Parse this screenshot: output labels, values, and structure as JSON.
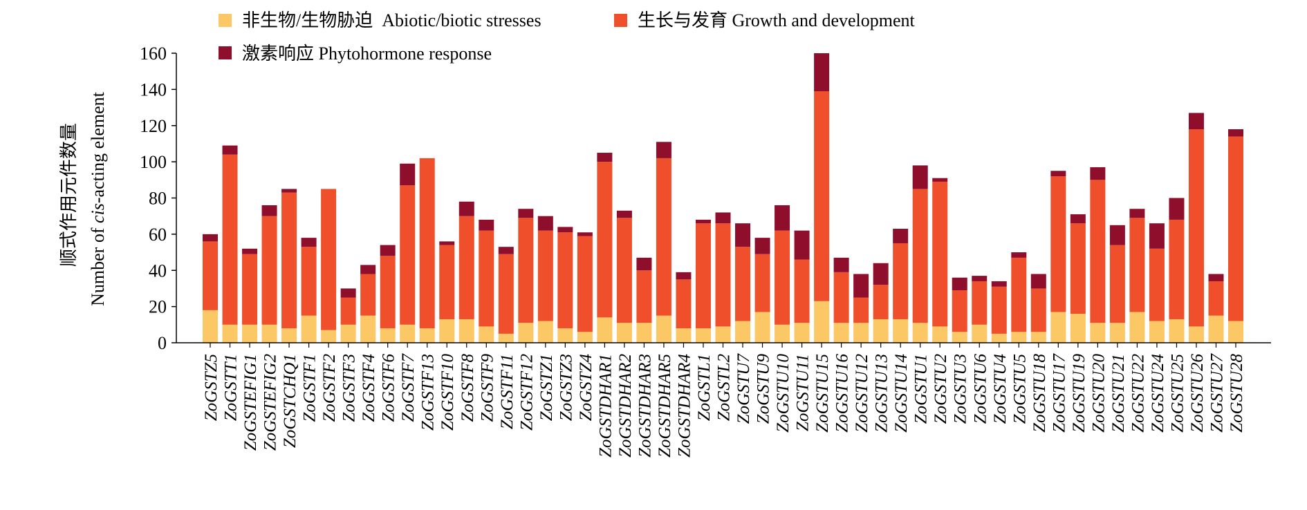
{
  "chart_data": {
    "type": "bar",
    "stacked": true,
    "title": "",
    "ylabel_cn": "顺式作用元件数量",
    "ylabel_en_prefix": "Number of ",
    "ylabel_en_italic": "cis",
    "ylabel_en_suffix": "-acting element",
    "xlabel": "",
    "ylim": [
      0,
      160
    ],
    "yticks": [
      0,
      20,
      40,
      60,
      80,
      100,
      120,
      140,
      160
    ],
    "grid": false,
    "legend_position": "top",
    "categories": [
      "ZoGSTZ5",
      "ZoGSTT1",
      "ZoGSTEFIG1",
      "ZoGSTEFIG2",
      "ZoGSTCHQ1",
      "ZoGSTF1",
      "ZoGSTF2",
      "ZoGSTF3",
      "ZoGSTF4",
      "ZoGSTF6",
      "ZoGSTF7",
      "ZoGSTF13",
      "ZoGSTF10",
      "ZoGSTF8",
      "ZoGSTF9",
      "ZoGSTF11",
      "ZoGSTF12",
      "ZoGSTZ1",
      "ZoGSTZ3",
      "ZoGSTZ4",
      "ZoGSTDHAR1",
      "ZoGSTDHAR2",
      "ZoGSTDHAR3",
      "ZoGSTDHAR5",
      "ZoGSTDHAR4",
      "ZoGSTL1",
      "ZoGSTL2",
      "ZoGSTU7",
      "ZoGSTU9",
      "ZoGSTU10",
      "ZoGSTU11",
      "ZoGSTU15",
      "ZoGSTU16",
      "ZoGSTU12",
      "ZoGSTU13",
      "ZoGSTU14",
      "ZoGSTU1",
      "ZoGSTU2",
      "ZoGSTU3",
      "ZoGSTU6",
      "ZoGSTU4",
      "ZoGSTU5",
      "ZoGSTU18",
      "ZoGSTU17",
      "ZoGSTU19",
      "ZoGSTU20",
      "ZoGSTU21",
      "ZoGSTU22",
      "ZoGSTU24",
      "ZoGSTU25",
      "ZoGSTU26",
      "ZoGSTU27",
      "ZoGSTU28"
    ],
    "series": [
      {
        "name": "非生物/生物胁迫  Abiotic/biotic stresses",
        "color": "#FCC865",
        "values": [
          18,
          10,
          10,
          10,
          8,
          15,
          7,
          10,
          15,
          8,
          10,
          8,
          13,
          13,
          9,
          5,
          11,
          12,
          8,
          6,
          14,
          11,
          11,
          15,
          8,
          8,
          9,
          12,
          17,
          10,
          11,
          23,
          11,
          11,
          13,
          13,
          11,
          9,
          6,
          10,
          5,
          6,
          6,
          17,
          16,
          11,
          11,
          17,
          12,
          13,
          9,
          15,
          12
        ]
      },
      {
        "name": "生长与发育 Growth and development",
        "color": "#EF4F2B",
        "values": [
          38,
          94,
          39,
          60,
          75,
          38,
          78,
          15,
          23,
          40,
          77,
          94,
          41,
          57,
          53,
          44,
          58,
          50,
          53,
          53,
          86,
          58,
          29,
          87,
          27,
          58,
          57,
          41,
          32,
          52,
          35,
          116,
          28,
          14,
          19,
          42,
          74,
          80,
          23,
          24,
          26,
          41,
          24,
          75,
          50,
          79,
          43,
          52,
          40,
          55,
          109,
          19,
          102
        ]
      },
      {
        "name": "激素响应 Phytohormone response",
        "color": "#8E0E2C",
        "values": [
          4,
          5,
          3,
          6,
          2,
          5,
          0,
          5,
          5,
          6,
          12,
          0,
          2,
          8,
          6,
          4,
          5,
          8,
          3,
          2,
          5,
          4,
          7,
          9,
          4,
          2,
          6,
          13,
          9,
          14,
          16,
          21,
          8,
          13,
          12,
          8,
          13,
          2,
          7,
          3,
          3,
          3,
          8,
          3,
          5,
          7,
          11,
          5,
          14,
          12,
          9,
          4,
          4
        ]
      }
    ]
  }
}
